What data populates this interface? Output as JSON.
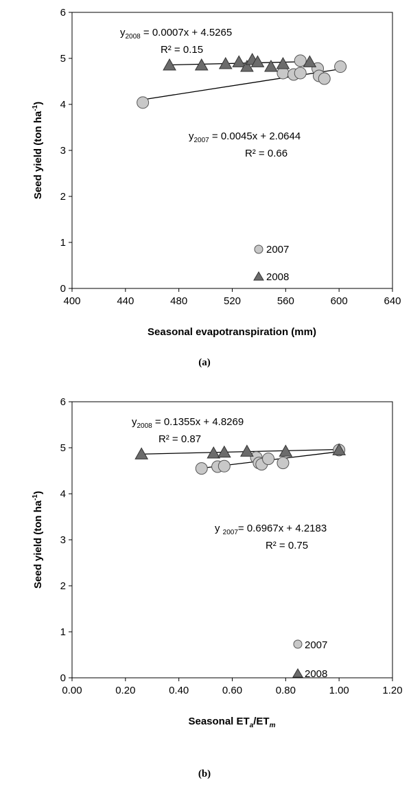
{
  "chart_data": [
    {
      "type": "scatter",
      "caption": "(a)",
      "xlabel": "Seasonal evapotranspiration (mm)",
      "ylabel": {
        "main": "Seed yield (ton ha",
        "sup": "-1",
        "close": ")"
      },
      "xlim": [
        400,
        640
      ],
      "ylim": [
        0,
        6
      ],
      "xticks": [
        "400",
        "440",
        "480",
        "520",
        "560",
        "600",
        "640"
      ],
      "yticks": [
        "0",
        "1",
        "2",
        "3",
        "4",
        "5",
        "6"
      ],
      "grid": false,
      "legend_position": "bottom-right",
      "series": [
        {
          "name": "2007",
          "marker": "circle",
          "color": "#c8c8c8",
          "points": [
            [
              453,
              4.04
            ],
            [
              558,
              4.68
            ],
            [
              566,
              4.65
            ],
            [
              571,
              4.68
            ],
            [
              571,
              4.95
            ],
            [
              584,
              4.78
            ],
            [
              585,
              4.62
            ],
            [
              589,
              4.56
            ],
            [
              601,
              4.82
            ]
          ],
          "trendline": {
            "slope": 0.0045,
            "intercept": 2.0644,
            "x_range": [
              453,
              601
            ]
          },
          "equation": {
            "y": "y",
            "sub": "2007",
            "rest": " = 0.0045x + 2.0644",
            "r2": "R² = 0.66"
          }
        },
        {
          "name": "2008",
          "marker": "triangle",
          "color": "#6b6b6b",
          "points": [
            [
              473,
              4.85
            ],
            [
              497,
              4.85
            ],
            [
              515,
              4.88
            ],
            [
              525,
              4.92
            ],
            [
              531,
              4.82
            ],
            [
              535,
              4.97
            ],
            [
              539,
              4.92
            ],
            [
              549,
              4.82
            ],
            [
              558,
              4.88
            ],
            [
              578,
              4.92
            ]
          ],
          "trendline": {
            "slope": 0.0007,
            "intercept": 4.5265,
            "x_range": [
              473,
              578
            ]
          },
          "equation": {
            "y": "y",
            "sub": "2008",
            "rest": " = 0.0007x + 4.5265",
            "r2": "R² = 0.15"
          }
        }
      ]
    },
    {
      "type": "scatter",
      "caption": "(b)",
      "xlabel": {
        "main": "Seasonal ET",
        "sub1": "a",
        "mid": "/ET",
        "sub2": "m"
      },
      "ylabel": {
        "main": "Seed yield (ton ha",
        "sup": "-1",
        "close": ")"
      },
      "xlim": [
        0,
        1.2
      ],
      "ylim": [
        0,
        6
      ],
      "xticks": [
        "0.00",
        "0.20",
        "0.40",
        "0.60",
        "0.80",
        "1.00",
        "1.20"
      ],
      "yticks": [
        "0",
        "1",
        "2",
        "3",
        "4",
        "5",
        "6"
      ],
      "grid": false,
      "legend_position": "bottom-right",
      "series": [
        {
          "name": "2007",
          "marker": "circle",
          "color": "#c8c8c8",
          "points": [
            [
              0.485,
              4.55
            ],
            [
              0.545,
              4.59
            ],
            [
              0.57,
              4.6
            ],
            [
              0.69,
              4.79
            ],
            [
              0.7,
              4.67
            ],
            [
              0.71,
              4.64
            ],
            [
              0.735,
              4.76
            ],
            [
              0.79,
              4.67
            ],
            [
              1.0,
              4.95
            ]
          ],
          "trendline": {
            "slope": 0.6967,
            "intercept": 4.2183,
            "x_range": [
              0.485,
              1.0
            ]
          },
          "equation": {
            "y": "y ",
            "sub": "2007",
            "rest": "= 0.6967x + 4.2183",
            "r2": "R² = 0.75"
          }
        },
        {
          "name": "2008",
          "marker": "triangle",
          "color": "#6b6b6b",
          "points": [
            [
              0.26,
              4.86
            ],
            [
              0.53,
              4.88
            ],
            [
              0.57,
              4.9
            ],
            [
              0.655,
              4.92
            ],
            [
              0.8,
              4.92
            ],
            [
              1.0,
              4.95
            ]
          ],
          "trendline": {
            "slope": 0.1355,
            "intercept": 4.8269,
            "x_range": [
              0.26,
              1.0
            ]
          },
          "equation": {
            "y": "y",
            "sub": "2008",
            "rest": " = 0.1355x + 4.8269",
            "r2": "R² = 0.87"
          }
        }
      ]
    }
  ]
}
